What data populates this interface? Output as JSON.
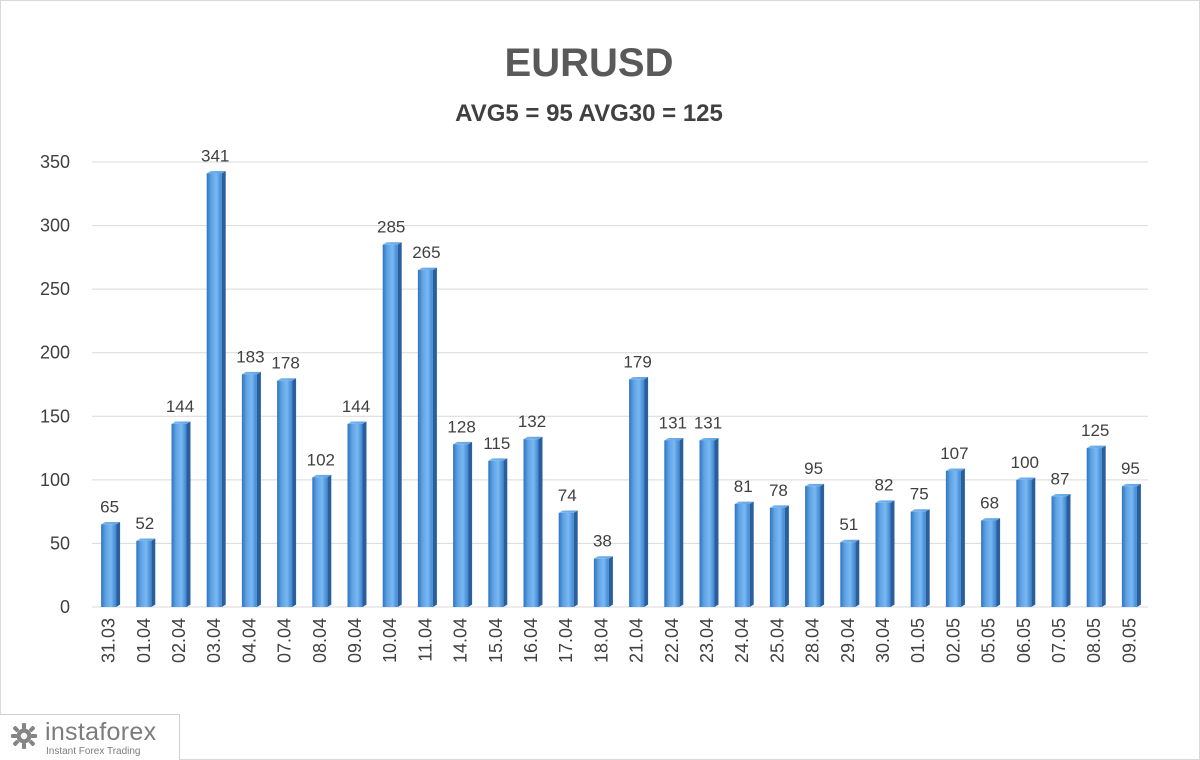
{
  "chart_data": {
    "type": "bar",
    "title": "EURUSD",
    "subtitle": "AVG5 = 95 AVG30 = 125",
    "categories": [
      "31.03",
      "01.04",
      "02.04",
      "03.04",
      "04.04",
      "07.04",
      "08.04",
      "09.04",
      "10.04",
      "11.04",
      "14.04",
      "15.04",
      "16.04",
      "17.04",
      "18.04",
      "21.04",
      "22.04",
      "23.04",
      "24.04",
      "25.04",
      "28.04",
      "29.04",
      "30.04",
      "01.05",
      "02.05",
      "05.05",
      "06.05",
      "07.05",
      "08.05",
      "09.05"
    ],
    "values": [
      65,
      52,
      144,
      341,
      183,
      178,
      102,
      144,
      285,
      265,
      128,
      115,
      132,
      74,
      38,
      179,
      131,
      131,
      81,
      78,
      95,
      51,
      82,
      75,
      107,
      68,
      100,
      87,
      125,
      95
    ],
    "ylim": [
      0,
      350
    ],
    "yticks": [
      "0",
      "50",
      "100",
      "150",
      "200",
      "250",
      "300",
      "350"
    ],
    "grid": true,
    "legend": "none",
    "bar_color": "#5B9BD5"
  },
  "watermark": {
    "name": "instaforex",
    "tagline": "Instant Forex Trading",
    "icon": "gear-icon"
  }
}
